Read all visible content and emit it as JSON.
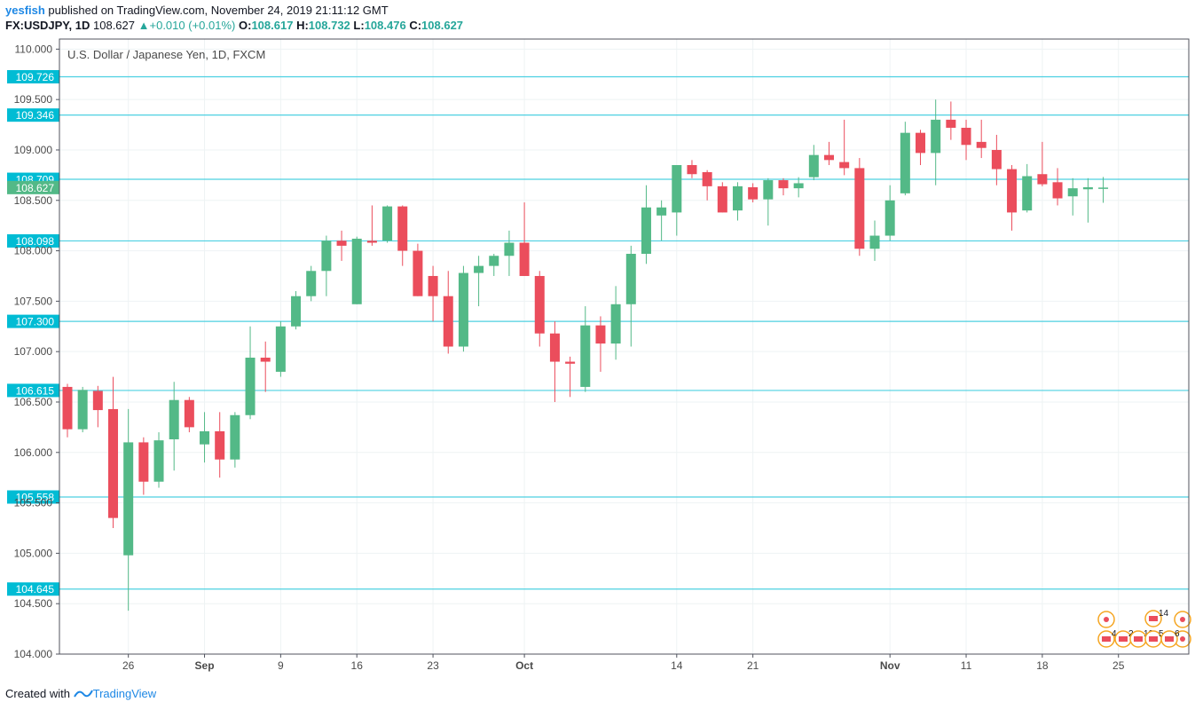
{
  "header": {
    "user": "yesfish",
    "published": " published on TradingView.com, November 24, 2019 21:11:12 GMT",
    "symbol": "FX:USDJPY, 1D",
    "last": "108.627",
    "change": "+0.010 (+0.01%)",
    "o_label": "O:",
    "o": "108.617",
    "h_label": "H:",
    "h": "108.732",
    "l_label": "L:",
    "l": "108.476",
    "c_label": "C:",
    "c": "108.627"
  },
  "footer": {
    "prefix": "Created with",
    "brand": "TradingView"
  },
  "chart_data": {
    "type": "candlestick",
    "title": "U.S. Dollar / Japanese Yen, 1D, FXCM",
    "ylim": [
      104.0,
      110.1
    ],
    "y_ticks": [
      "110.000",
      "109.500",
      "109.000",
      "108.500",
      "108.000",
      "107.500",
      "107.000",
      "106.500",
      "106.000",
      "105.500",
      "105.000",
      "104.500",
      "104.000"
    ],
    "x_ticks": [
      {
        "i": 4,
        "label": "26"
      },
      {
        "i": 9,
        "label": "Sep"
      },
      {
        "i": 14,
        "label": "9"
      },
      {
        "i": 19,
        "label": "16"
      },
      {
        "i": 24,
        "label": "23"
      },
      {
        "i": 30,
        "label": "Oct"
      },
      {
        "i": 40,
        "label": "14"
      },
      {
        "i": 45,
        "label": "21"
      },
      {
        "i": 54,
        "label": "Nov"
      },
      {
        "i": 59,
        "label": "11"
      },
      {
        "i": 64,
        "label": "18"
      },
      {
        "i": 69,
        "label": "25"
      }
    ],
    "horizontal_levels": [
      "109.726",
      "109.346",
      "108.709",
      "108.098",
      "107.300",
      "106.615",
      "105.558",
      "104.645"
    ],
    "last_price": "108.627",
    "colors": {
      "up": "#53b987",
      "down": "#eb4d5c",
      "level": "#4dd0e1",
      "level_label": "#00bcd4",
      "grid": "#eef3f4",
      "last": "#53b987"
    },
    "candles": [
      {
        "o": 106.65,
        "h": 106.68,
        "l": 106.15,
        "c": 106.23
      },
      {
        "o": 106.23,
        "h": 106.65,
        "l": 106.2,
        "c": 106.62
      },
      {
        "o": 106.61,
        "h": 106.66,
        "l": 106.25,
        "c": 106.42
      },
      {
        "o": 106.43,
        "h": 106.75,
        "l": 105.25,
        "c": 105.35
      },
      {
        "o": 104.98,
        "h": 106.43,
        "l": 104.43,
        "c": 106.1
      },
      {
        "o": 106.1,
        "h": 106.15,
        "l": 105.58,
        "c": 105.71
      },
      {
        "o": 105.71,
        "h": 106.2,
        "l": 105.65,
        "c": 106.12
      },
      {
        "o": 106.13,
        "h": 106.7,
        "l": 105.82,
        "c": 106.52
      },
      {
        "o": 106.52,
        "h": 106.55,
        "l": 106.2,
        "c": 106.25
      },
      {
        "o": 106.08,
        "h": 106.4,
        "l": 105.9,
        "c": 106.21
      },
      {
        "o": 106.21,
        "h": 106.4,
        "l": 105.75,
        "c": 105.93
      },
      {
        "o": 105.93,
        "h": 106.4,
        "l": 105.85,
        "c": 106.37
      },
      {
        "o": 106.37,
        "h": 107.25,
        "l": 106.33,
        "c": 106.94
      },
      {
        "o": 106.94,
        "h": 107.1,
        "l": 106.6,
        "c": 106.9
      },
      {
        "o": 106.8,
        "h": 107.3,
        "l": 106.75,
        "c": 107.25
      },
      {
        "o": 107.25,
        "h": 107.6,
        "l": 107.22,
        "c": 107.55
      },
      {
        "o": 107.55,
        "h": 107.85,
        "l": 107.5,
        "c": 107.8
      },
      {
        "o": 107.8,
        "h": 108.15,
        "l": 107.55,
        "c": 108.1
      },
      {
        "o": 108.1,
        "h": 108.2,
        "l": 107.9,
        "c": 108.05
      },
      {
        "o": 107.47,
        "h": 108.14,
        "l": 107.47,
        "c": 108.12
      },
      {
        "o": 108.1,
        "h": 108.45,
        "l": 108.05,
        "c": 108.08
      },
      {
        "o": 108.1,
        "h": 108.45,
        "l": 108.08,
        "c": 108.44
      },
      {
        "o": 108.44,
        "h": 108.45,
        "l": 107.85,
        "c": 108.0
      },
      {
        "o": 108.0,
        "h": 108.07,
        "l": 107.55,
        "c": 107.55
      },
      {
        "o": 107.75,
        "h": 107.85,
        "l": 107.3,
        "c": 107.55
      },
      {
        "o": 107.55,
        "h": 107.8,
        "l": 106.98,
        "c": 107.05
      },
      {
        "o": 107.05,
        "h": 107.85,
        "l": 107.0,
        "c": 107.78
      },
      {
        "o": 107.78,
        "h": 107.95,
        "l": 107.45,
        "c": 107.85
      },
      {
        "o": 107.85,
        "h": 107.97,
        "l": 107.75,
        "c": 107.95
      },
      {
        "o": 107.95,
        "h": 108.2,
        "l": 107.75,
        "c": 108.08
      },
      {
        "o": 108.08,
        "h": 108.48,
        "l": 107.75,
        "c": 107.75
      },
      {
        "o": 107.75,
        "h": 107.8,
        "l": 107.05,
        "c": 107.18
      },
      {
        "o": 107.18,
        "h": 107.3,
        "l": 106.5,
        "c": 106.9
      },
      {
        "o": 106.9,
        "h": 106.95,
        "l": 106.55,
        "c": 106.88
      },
      {
        "o": 106.65,
        "h": 107.45,
        "l": 106.6,
        "c": 107.26
      },
      {
        "o": 107.26,
        "h": 107.35,
        "l": 106.8,
        "c": 107.08
      },
      {
        "o": 107.08,
        "h": 107.65,
        "l": 106.92,
        "c": 107.47
      },
      {
        "o": 107.47,
        "h": 108.05,
        "l": 107.05,
        "c": 107.97
      },
      {
        "o": 107.97,
        "h": 108.65,
        "l": 107.87,
        "c": 108.43
      },
      {
        "o": 108.35,
        "h": 108.5,
        "l": 108.1,
        "c": 108.43
      },
      {
        "o": 108.38,
        "h": 108.85,
        "l": 108.15,
        "c": 108.85
      },
      {
        "o": 108.85,
        "h": 108.9,
        "l": 108.72,
        "c": 108.76
      },
      {
        "o": 108.78,
        "h": 108.8,
        "l": 108.5,
        "c": 108.64
      },
      {
        "o": 108.64,
        "h": 108.68,
        "l": 108.38,
        "c": 108.38
      },
      {
        "o": 108.4,
        "h": 108.68,
        "l": 108.3,
        "c": 108.64
      },
      {
        "o": 108.63,
        "h": 108.67,
        "l": 108.48,
        "c": 108.51
      },
      {
        "o": 108.51,
        "h": 108.72,
        "l": 108.25,
        "c": 108.7
      },
      {
        "o": 108.7,
        "h": 108.72,
        "l": 108.55,
        "c": 108.62
      },
      {
        "o": 108.62,
        "h": 108.73,
        "l": 108.53,
        "c": 108.67
      },
      {
        "o": 108.73,
        "h": 109.05,
        "l": 108.7,
        "c": 108.95
      },
      {
        "o": 108.95,
        "h": 109.08,
        "l": 108.85,
        "c": 108.9
      },
      {
        "o": 108.88,
        "h": 109.3,
        "l": 108.75,
        "c": 108.82
      },
      {
        "o": 108.82,
        "h": 108.92,
        "l": 107.95,
        "c": 108.02
      },
      {
        "o": 108.02,
        "h": 108.3,
        "l": 107.9,
        "c": 108.15
      },
      {
        "o": 108.15,
        "h": 108.65,
        "l": 108.1,
        "c": 108.5
      },
      {
        "o": 108.57,
        "h": 109.28,
        "l": 108.55,
        "c": 109.17
      },
      {
        "o": 109.17,
        "h": 109.2,
        "l": 108.85,
        "c": 108.97
      },
      {
        "o": 108.97,
        "h": 109.5,
        "l": 108.65,
        "c": 109.3
      },
      {
        "o": 109.3,
        "h": 109.48,
        "l": 109.1,
        "c": 109.22
      },
      {
        "o": 109.22,
        "h": 109.3,
        "l": 108.9,
        "c": 109.05
      },
      {
        "o": 109.08,
        "h": 109.3,
        "l": 108.92,
        "c": 109.02
      },
      {
        "o": 109.0,
        "h": 109.15,
        "l": 108.65,
        "c": 108.81
      },
      {
        "o": 108.81,
        "h": 108.85,
        "l": 108.2,
        "c": 108.38
      },
      {
        "o": 108.4,
        "h": 108.86,
        "l": 108.38,
        "c": 108.74
      },
      {
        "o": 108.76,
        "h": 109.08,
        "l": 108.64,
        "c": 108.66
      },
      {
        "o": 108.68,
        "h": 108.82,
        "l": 108.45,
        "c": 108.52
      },
      {
        "o": 108.54,
        "h": 108.72,
        "l": 108.35,
        "c": 108.62
      },
      {
        "o": 108.61,
        "h": 108.72,
        "l": 108.28,
        "c": 108.63
      },
      {
        "o": 108.617,
        "h": 108.732,
        "l": 108.476,
        "c": 108.627
      }
    ],
    "events": [
      {
        "type": "flag",
        "count": "14"
      },
      {
        "type": "flag",
        "count": "4"
      },
      {
        "type": "flag",
        "count": "2"
      },
      {
        "type": "flag",
        "count": "10"
      },
      {
        "type": "flag",
        "count": "5"
      },
      {
        "type": "flag",
        "count": "6"
      }
    ]
  }
}
